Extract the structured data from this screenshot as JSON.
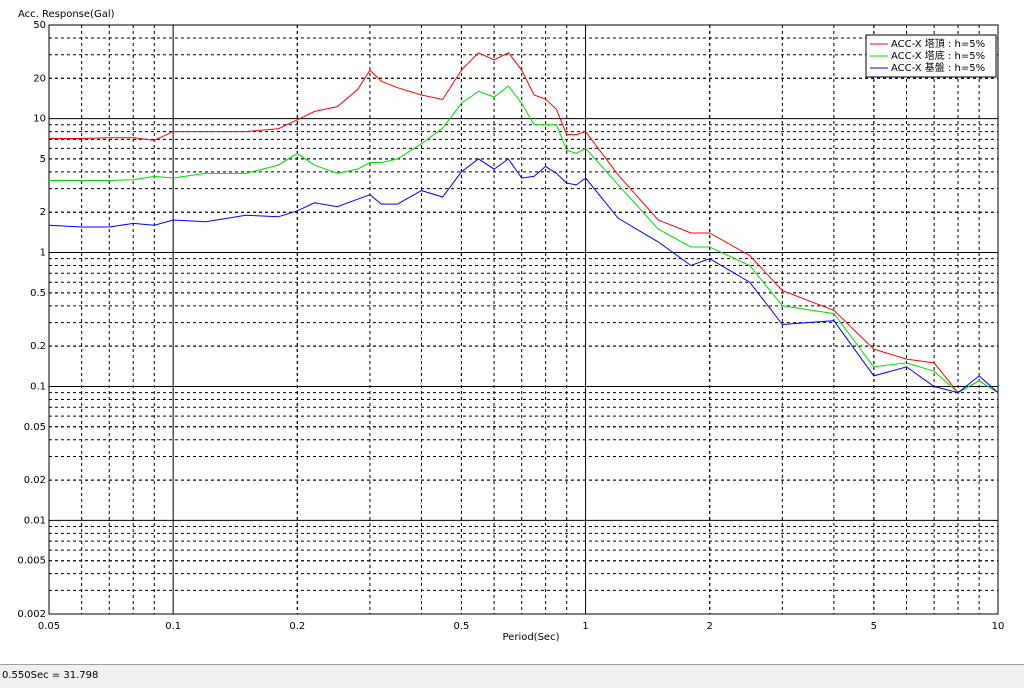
{
  "chart_data": {
    "type": "line",
    "y_label": "Acc. Response(Gal)",
    "x_label": "Period(Sec)",
    "x": [
      0.05,
      0.06,
      0.07,
      0.08,
      0.09,
      0.1,
      0.12,
      0.15,
      0.18,
      0.2,
      0.22,
      0.25,
      0.28,
      0.3,
      0.32,
      0.35,
      0.4,
      0.45,
      0.5,
      0.55,
      0.6,
      0.65,
      0.7,
      0.75,
      0.8,
      0.85,
      0.9,
      0.95,
      1,
      1.2,
      1.5,
      1.8,
      2,
      2.5,
      3,
      4,
      5,
      6,
      7,
      8,
      9,
      10
    ],
    "series": [
      {
        "name": "ACC-X 塔頂 : h=5%",
        "color": "#ff0000",
        "values": [
          7.1,
          7.1,
          7.2,
          7.2,
          6.9,
          8.0,
          8.0,
          8.0,
          8.4,
          9.8,
          11.3,
          12.3,
          16.5,
          23,
          19,
          17,
          15,
          13.9,
          23,
          31,
          27.5,
          31,
          23,
          15,
          14,
          11.7,
          7.6,
          7.6,
          8,
          3.8,
          1.75,
          1.4,
          1.4,
          0.95,
          0.52,
          0.37,
          0.19,
          0.16,
          0.15,
          0.09,
          0.11,
          0.09
        ]
      },
      {
        "name": "ACC-X 塔底 : h=5%",
        "color": "#00e000",
        "values": [
          3.45,
          3.45,
          3.45,
          3.5,
          3.7,
          3.6,
          3.9,
          3.9,
          4.5,
          5.5,
          4.5,
          3.9,
          4.2,
          4.7,
          4.7,
          5.0,
          6.5,
          8.5,
          13,
          16,
          14.5,
          17.5,
          13,
          9,
          9,
          9,
          5.8,
          5.5,
          6,
          3.2,
          1.5,
          1.1,
          1.1,
          0.8,
          0.4,
          0.35,
          0.14,
          0.15,
          0.13,
          0.09,
          0.11,
          0.09
        ]
      },
      {
        "name": "ACC-X 基盤 : h=5%",
        "color": "#0000ff",
        "values": [
          1.6,
          1.55,
          1.55,
          1.65,
          1.6,
          1.75,
          1.7,
          1.9,
          1.85,
          2.05,
          2.35,
          2.2,
          2.5,
          2.7,
          2.3,
          2.3,
          2.9,
          2.6,
          4.0,
          5,
          4.2,
          5,
          3.6,
          3.7,
          4.4,
          3.9,
          3.3,
          3.2,
          3.6,
          1.8,
          1.2,
          0.8,
          0.9,
          0.6,
          0.29,
          0.31,
          0.12,
          0.14,
          0.1,
          0.09,
          0.12,
          0.09
        ]
      }
    ],
    "xlim": [
      0.05,
      10
    ],
    "ylim": [
      0.002,
      50
    ],
    "xticks": [
      0.05,
      0.1,
      0.2,
      0.5,
      1,
      2,
      5,
      10
    ],
    "yticks": [
      50,
      20,
      10,
      5,
      2,
      1,
      0.5,
      0.2,
      0.1,
      0.05,
      0.02,
      0.01,
      0.005,
      0.002
    ],
    "xscale": "log",
    "yscale": "log",
    "grid": true,
    "minor_grid": true,
    "legend": "upper right"
  },
  "status": "0.550Sec = 31.798"
}
